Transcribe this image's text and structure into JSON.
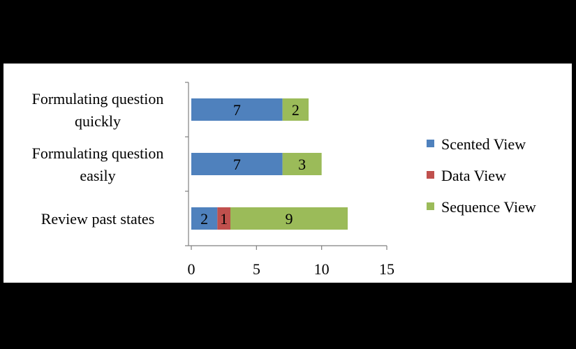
{
  "chart_data": {
    "type": "bar",
    "orientation": "horizontal",
    "stacked": true,
    "title": "",
    "xlabel": "",
    "ylabel": "",
    "categories": [
      "Formulating question quickly",
      "Formulating question easily",
      "Review past states"
    ],
    "category_lines": [
      [
        "Formulating question",
        "quickly"
      ],
      [
        "Formulating question",
        "easily"
      ],
      [
        "Review past states"
      ]
    ],
    "series": [
      {
        "name": "Scented View",
        "color": "#4F81BD",
        "values": [
          7,
          7,
          2
        ]
      },
      {
        "name": "Data View",
        "color": "#C0504D",
        "values": [
          0,
          0,
          1
        ]
      },
      {
        "name": "Sequence View",
        "color": "#9BBB59",
        "values": [
          2,
          3,
          9
        ]
      }
    ],
    "xlim": [
      0,
      15
    ],
    "xticks": [
      0,
      5,
      10,
      15
    ],
    "grid": false,
    "legend_position": "right"
  }
}
